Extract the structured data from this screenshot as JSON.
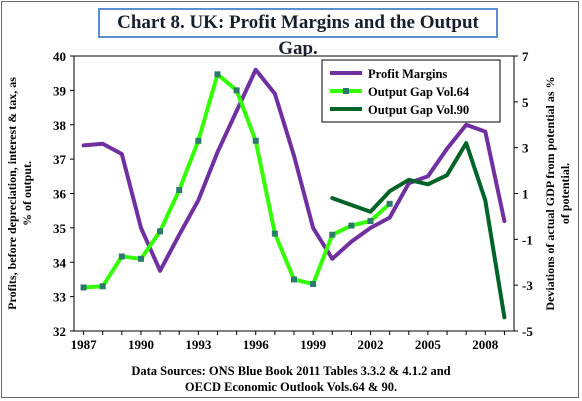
{
  "title": "Chart  8. UK: Profit Margins and the Output Gap.",
  "source_line1": "Data Sources: ONS Blue Book 2011 Tables 3.3.2 & 4.1.2 and",
  "source_line2": "OECD Economic Outlook Vols.64 & 90.",
  "colors": {
    "profit": "#7030a0",
    "gap64": "#33ff00",
    "gap90": "#006428",
    "marker64": "#2d7a6a"
  },
  "chart_data": {
    "type": "line",
    "xlabel": "",
    "ylabel_left": "Profits, before depreciation, interest & tax, as % of output.",
    "ylabel_right": "Deviations of actual GDP from potential as % of potential.",
    "x_ticks": [
      "1987",
      "1990",
      "1993",
      "1996",
      "1999",
      "2002",
      "2005",
      "2008"
    ],
    "x_range": [
      1986.5,
      2009.5
    ],
    "y_left": {
      "range": [
        32,
        40
      ],
      "ticks": [
        "32",
        "33",
        "34",
        "35",
        "36",
        "37",
        "38",
        "39",
        "40"
      ]
    },
    "y_right": {
      "range": [
        -5,
        7
      ],
      "ticks": [
        "-5",
        "-3",
        "-1",
        "1",
        "3",
        "5",
        "7"
      ]
    },
    "legend_position": "top-right",
    "series": [
      {
        "name": "Profit Margins",
        "axis": "left",
        "markers": false,
        "x": [
          1987,
          1988,
          1989,
          1990,
          1991,
          1992,
          1993,
          1994,
          1995,
          1996,
          1997,
          1998,
          1999,
          2000,
          2001,
          2002,
          2003,
          2004,
          2005,
          2006,
          2007,
          2008,
          2009
        ],
        "y": [
          37.4,
          37.45,
          37.15,
          35.0,
          33.75,
          34.8,
          35.8,
          37.2,
          38.4,
          39.6,
          38.9,
          37.1,
          35.0,
          34.1,
          34.6,
          35.0,
          35.3,
          36.3,
          36.5,
          37.3,
          38.0,
          37.8,
          35.2
        ]
      },
      {
        "name": "Output Gap Vol.64",
        "axis": "right",
        "markers": true,
        "x": [
          1987,
          1988,
          1989,
          1990,
          1991,
          1992,
          1993,
          1994,
          1995,
          1996,
          1997,
          1998,
          1999,
          2000,
          2001,
          2002,
          2003
        ],
        "y": [
          -3.1,
          -3.05,
          -1.75,
          -1.85,
          -0.65,
          1.15,
          3.3,
          6.2,
          5.5,
          3.3,
          -0.75,
          -2.75,
          -2.95,
          -0.8,
          -0.4,
          -0.2,
          0.55
        ]
      },
      {
        "name": "Output Gap Vol.90",
        "axis": "right",
        "markers": false,
        "x": [
          2000,
          2001,
          2002,
          2003,
          2004,
          2005,
          2006,
          2007,
          2008,
          2009
        ],
        "y": [
          0.8,
          0.5,
          0.2,
          1.1,
          1.6,
          1.4,
          1.8,
          3.2,
          0.7,
          -4.4
        ]
      }
    ]
  }
}
